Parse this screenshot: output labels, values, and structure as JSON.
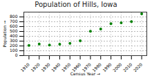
{
  "chart_data": {
    "type": "scatter",
    "title": "Population of Hills, Iowa",
    "x_label": "Census Year",
    "y_label": "Population",
    "x": [
      1910,
      1920,
      1930,
      1940,
      1950,
      1960,
      1970,
      1980,
      1990,
      2000,
      2010,
      2020
    ],
    "values": [
      209,
      239,
      219,
      234,
      254,
      308,
      503,
      550,
      662,
      679,
      703,
      863
    ],
    "color": "#008000",
    "marker": "circle",
    "xlim": [
      1905,
      2025
    ],
    "xticks": [
      1910,
      1920,
      1930,
      1940,
      1950,
      1960,
      1970,
      1980,
      1990,
      2000,
      2010,
      2020
    ],
    "ylim": [
      0,
      900
    ],
    "yticks": [
      0,
      100,
      200,
      300,
      400,
      500,
      600,
      700,
      800
    ],
    "grid": true
  }
}
